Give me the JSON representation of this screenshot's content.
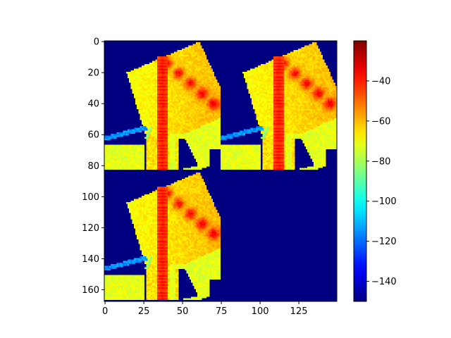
{
  "chart_data": {
    "type": "heatmap",
    "colormap": "jet",
    "title": "",
    "xlabel": "",
    "ylabel": "",
    "image_extent": {
      "x": [
        -0.5,
        149.5
      ],
      "y": [
        167.5,
        -0.5
      ]
    },
    "x_ticks": [
      {
        "value": 0,
        "label": "0"
      },
      {
        "value": 25,
        "label": "25"
      },
      {
        "value": 50,
        "label": "50"
      },
      {
        "value": 75,
        "label": "75"
      },
      {
        "value": 100,
        "label": "100"
      },
      {
        "value": 125,
        "label": "125"
      }
    ],
    "y_ticks": [
      {
        "value": 0,
        "label": "0"
      },
      {
        "value": 20,
        "label": "20"
      },
      {
        "value": 40,
        "label": "40"
      },
      {
        "value": 60,
        "label": "60"
      },
      {
        "value": 80,
        "label": "80"
      },
      {
        "value": 100,
        "label": "100"
      },
      {
        "value": 120,
        "label": "120"
      },
      {
        "value": 140,
        "label": "140"
      },
      {
        "value": 160,
        "label": "160"
      }
    ],
    "colorbar": {
      "vmin": -150,
      "vmax": -20,
      "ticks": [
        {
          "value": -40,
          "label": "−40"
        },
        {
          "value": -60,
          "label": "−60"
        },
        {
          "value": -80,
          "label": "−80"
        },
        {
          "value": -100,
          "label": "−100"
        },
        {
          "value": -120,
          "label": "−120"
        },
        {
          "value": -140,
          "label": "−140"
        }
      ]
    },
    "background_value": -150,
    "panels": [
      {
        "name": "",
        "x_range": [
          0,
          75
        ],
        "y_range": [
          0,
          83
        ]
      },
      {
        "name": "",
        "x_range": [
          75,
          150
        ],
        "y_range": [
          0,
          83
        ]
      },
      {
        "name": "",
        "x_range": [
          0,
          75
        ],
        "y_range": [
          84,
          168
        ]
      }
    ],
    "panel_features": {
      "beam_column_x": 37,
      "beam_value": -36,
      "field_value_range": [
        -75,
        -55
      ],
      "low_strip_value": -115
    }
  }
}
